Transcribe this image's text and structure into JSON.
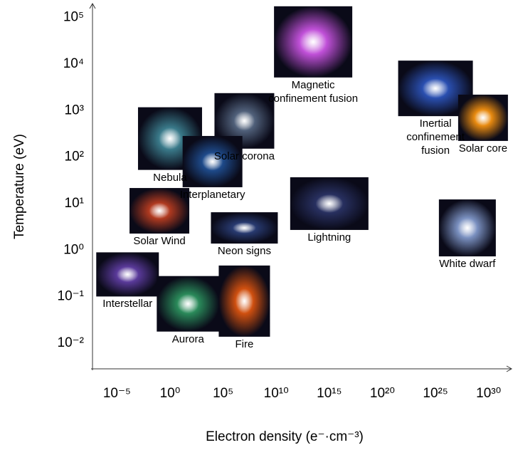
{
  "chart_data": {
    "type": "scatter",
    "x_label": "Electron density (e⁻·cm⁻³)",
    "y_label": "Temperature (eV)",
    "x_log": true,
    "y_log": true,
    "xlim": [
      5e-08,
      1.25e+32
    ],
    "ylim": [
      0.0028,
      200000
    ],
    "xticks": [
      {
        "value": 1e-05,
        "label": "10⁻⁵"
      },
      {
        "value": 1,
        "label": "10⁰"
      },
      {
        "value": 100000.0,
        "label": "10⁵"
      },
      {
        "value": 10000000000.0,
        "label": "10¹⁰"
      },
      {
        "value": 1000000000000000.0,
        "label": "10¹⁵"
      },
      {
        "value": 1e+20,
        "label": "10²⁰"
      },
      {
        "value": 1e+25,
        "label": "10²⁵"
      },
      {
        "value": 1e+30,
        "label": "10³⁰"
      }
    ],
    "yticks": [
      {
        "value": 0.01,
        "label": "10⁻²"
      },
      {
        "value": 0.1,
        "label": "10⁻¹"
      },
      {
        "value": 1,
        "label": "10⁰"
      },
      {
        "value": 10,
        "label": "10¹"
      },
      {
        "value": 100,
        "label": "10²"
      },
      {
        "value": 1000,
        "label": "10³"
      },
      {
        "value": 10000,
        "label": "10⁴"
      },
      {
        "value": 100000,
        "label": "10⁵"
      }
    ],
    "points": [
      {
        "label": "Magnetic confinement fusion",
        "x": 30000000000000.0,
        "y": 30000,
        "color": "#c050d8"
      },
      {
        "label": "Inertial confinement fusion",
        "x": 1e+25,
        "y": 3000,
        "color": "#2a4fb0"
      },
      {
        "label": "Solar core",
        "x": 3e+29,
        "y": 700,
        "color": "#e88a10"
      },
      {
        "label": "Solar corona",
        "x": 10000000.0,
        "y": 600,
        "color": "#50607a"
      },
      {
        "label": "Nebula",
        "x": 1,
        "y": 250,
        "color": "#3a7a8a"
      },
      {
        "label": "Interplanetary",
        "x": 10000.0,
        "y": 80,
        "color": "#1e4a8a"
      },
      {
        "label": "Solar Wind",
        "x": 0.1,
        "y": 7,
        "color": "#b03a20"
      },
      {
        "label": "Neon signs",
        "x": 10000000.0,
        "y": 3,
        "color": "#283a70"
      },
      {
        "label": "Lightning",
        "x": 1000000000000000.0,
        "y": 10,
        "color": "#283060"
      },
      {
        "label": "White dwarf",
        "x": 1e+28,
        "y": 3,
        "color": "#7a90c0"
      },
      {
        "label": "Interstellar",
        "x": 0.0001,
        "y": 0.3,
        "color": "#5a3a9a"
      },
      {
        "label": "Aurora",
        "x": 50,
        "y": 0.07,
        "color": "#2a8a5a"
      },
      {
        "label": "Fire",
        "x": 10000000.0,
        "y": 0.08,
        "color": "#d05010"
      }
    ]
  }
}
